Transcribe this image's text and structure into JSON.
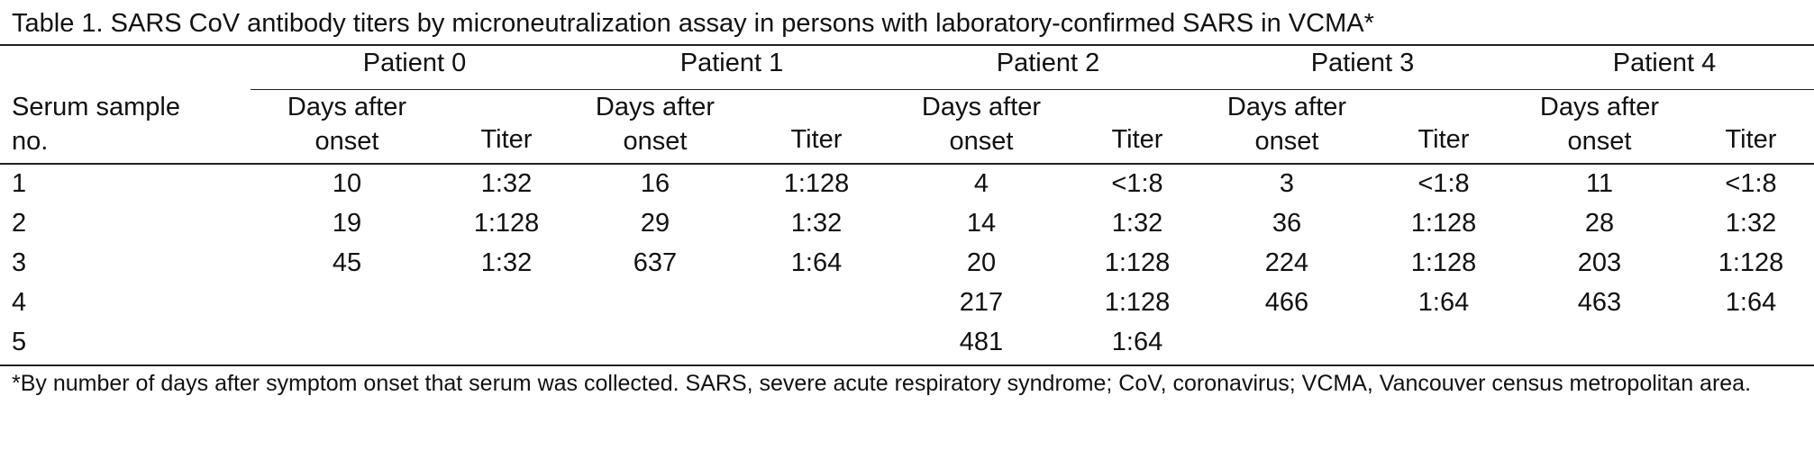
{
  "title": "Table 1. SARS CoV antibody titers by microneutralization assay in persons with laboratory-confirmed SARS in VCMA*",
  "header": {
    "row_label_line1": "Serum sample",
    "row_label_line2": "no.",
    "patients": [
      "Patient 0",
      "Patient 1",
      "Patient 2",
      "Patient 3",
      "Patient 4"
    ],
    "days_line1": "Days after",
    "days_line2": "onset",
    "titer": "Titer"
  },
  "rows": [
    {
      "no": "1",
      "values": [
        [
          "10",
          "1:32"
        ],
        [
          "16",
          "1:128"
        ],
        [
          "4",
          "<1:8"
        ],
        [
          "3",
          "<1:8"
        ],
        [
          "11",
          "<1:8"
        ]
      ]
    },
    {
      "no": "2",
      "values": [
        [
          "19",
          "1:128"
        ],
        [
          "29",
          "1:32"
        ],
        [
          "14",
          "1:32"
        ],
        [
          "36",
          "1:128"
        ],
        [
          "28",
          "1:32"
        ]
      ]
    },
    {
      "no": "3",
      "values": [
        [
          "45",
          "1:32"
        ],
        [
          "637",
          "1:64"
        ],
        [
          "20",
          "1:128"
        ],
        [
          "224",
          "1:128"
        ],
        [
          "203",
          "1:128"
        ]
      ]
    },
    {
      "no": "4",
      "values": [
        [
          "",
          ""
        ],
        [
          "",
          ""
        ],
        [
          "217",
          "1:128"
        ],
        [
          "466",
          "1:64"
        ],
        [
          "463",
          "1:64"
        ]
      ]
    },
    {
      "no": "5",
      "values": [
        [
          "",
          ""
        ],
        [
          "",
          ""
        ],
        [
          "481",
          "1:64"
        ],
        [
          "",
          ""
        ],
        [
          "",
          ""
        ]
      ]
    }
  ],
  "footnote": "*By number of days after symptom onset that serum was collected. SARS, severe acute respiratory syndrome; CoV, coronavirus; VCMA, Vancouver census metropolitan area."
}
